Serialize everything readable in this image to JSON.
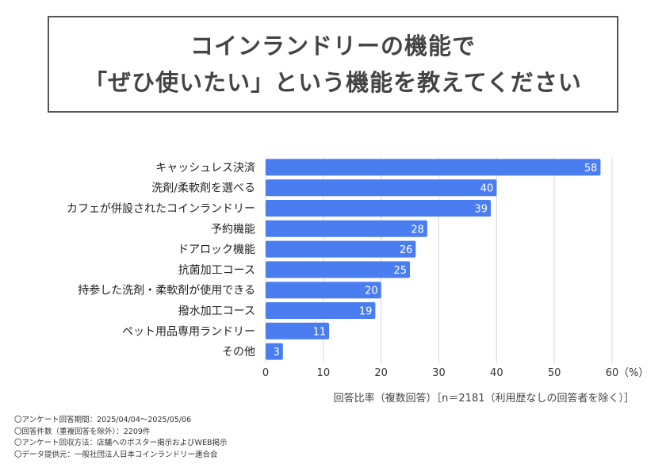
{
  "title": {
    "line1": "コインランドリーの機能で",
    "line2": "「ぜひ使いたい」という機能を教えてください"
  },
  "chart_data": {
    "type": "bar",
    "orientation": "horizontal",
    "categories": [
      "キャッシュレス決済",
      "洗剤/柔軟剤を選べる",
      "カフェが併設されたコインランドリー",
      "予約機能",
      "ドアロック機能",
      "抗菌加工コース",
      "持参した洗剤・柔軟剤が使用できる",
      "撥水加工コース",
      "ペット用品専用ランドリー",
      "その他"
    ],
    "values": [
      58,
      40,
      39,
      28,
      26,
      25,
      20,
      19,
      11,
      3
    ],
    "xlim": [
      0,
      60
    ],
    "xticks": [
      0,
      10,
      20,
      30,
      40,
      50,
      60
    ],
    "unit_label": "（%）",
    "xlabel": "回答比率（複数回答）［n＝2181（利用歴なしの回答者を除く）］",
    "grid": true,
    "bar_color": "#4a7ef0"
  },
  "notes": [
    "〇アンケート回答期間：2025/04/04〜2025/05/06",
    "〇回答件数（重複回答を除外）：2209件",
    "〇アンケート回収方法：店舗へのポスター掲示およびWEB掲示",
    "〇データ提供元：一般社団法人日本コインランドリー連合会"
  ]
}
